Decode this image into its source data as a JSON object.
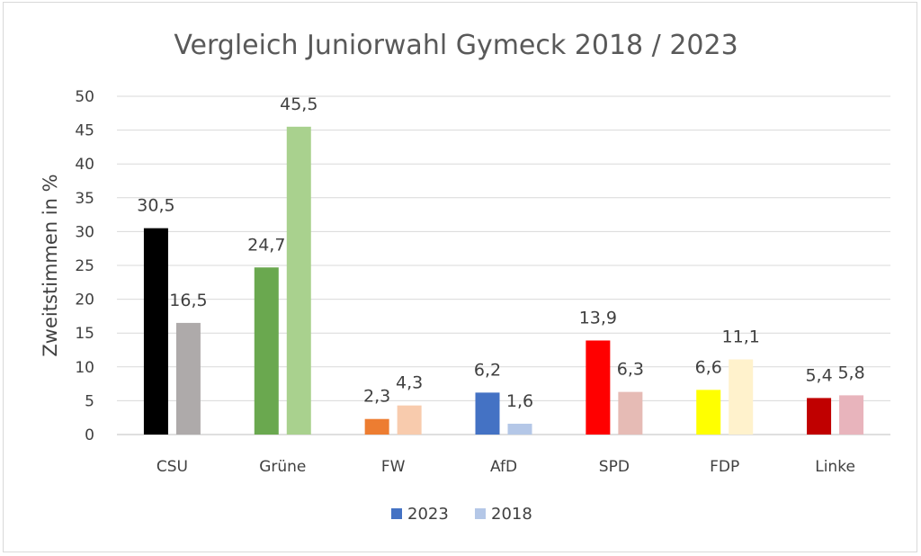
{
  "chart_data": {
    "type": "bar",
    "title": "Vergleich Juniorwahl Gymeck 2018 / 2023",
    "xlabel": "",
    "ylabel": "Zweitstimmen in %",
    "ylim": [
      0,
      50
    ],
    "yticks": [
      0,
      5,
      10,
      15,
      20,
      25,
      30,
      35,
      40,
      45,
      50
    ],
    "grid": true,
    "legend_position": "bottom",
    "categories": [
      "CSU",
      "Grüne",
      "FW",
      "AfD",
      "SPD",
      "FDP",
      "Linke"
    ],
    "series": [
      {
        "name": "2023",
        "values": [
          30.5,
          24.7,
          2.3,
          6.2,
          13.9,
          6.6,
          5.4
        ],
        "labels": [
          "30,5",
          "24,7",
          "2,3",
          "6,2",
          "13,9",
          "6,6",
          "5,4"
        ],
        "colors": [
          "#000000",
          "#6aa84f",
          "#ed7d31",
          "#4472c4",
          "#ff0000",
          "#ffff00",
          "#c00000"
        ],
        "legend_color": "#4472c4"
      },
      {
        "name": "2018",
        "values": [
          16.5,
          45.5,
          4.3,
          1.6,
          6.3,
          11.1,
          5.8
        ],
        "labels": [
          "16,5",
          "45,5",
          "4,3",
          "1,6",
          "6,3",
          "11,1",
          "5,8"
        ],
        "colors": [
          "#aeaaaa",
          "#a9d18e",
          "#f8cbad",
          "#b4c7e7",
          "#e6bbb5",
          "#fff2cc",
          "#e8b4bc"
        ],
        "legend_color": "#b4c7e7"
      }
    ]
  }
}
